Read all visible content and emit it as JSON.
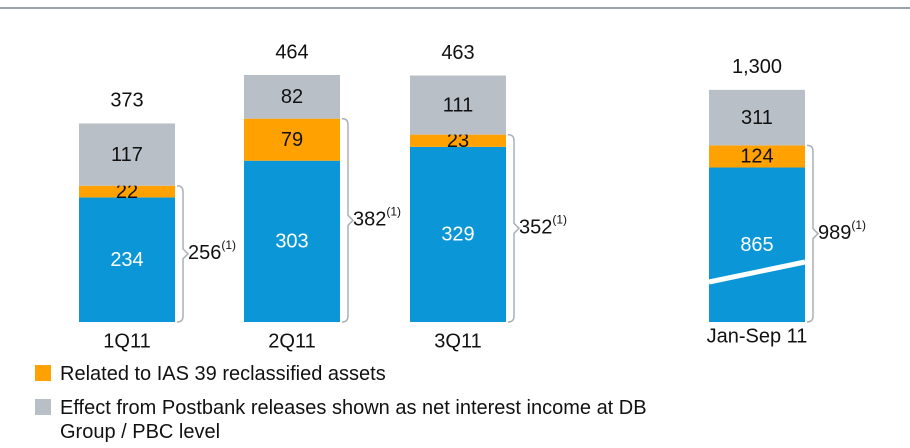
{
  "chart_data": {
    "type": "stacked-bar",
    "categories": [
      "1Q11",
      "2Q11",
      "3Q11",
      "Jan-Sep 11"
    ],
    "series": [
      {
        "color": "#0b97d7",
        "values": [
          234,
          303,
          329,
          865
        ]
      },
      {
        "name": "Related to IAS 39 reclassified assets",
        "color": "#ffa100",
        "values": [
          22,
          79,
          23,
          124
        ]
      },
      {
        "name": "Effect from Postbank releases shown as net interest income at DB Group / PBC level",
        "color": "#b8bfc7",
        "values": [
          117,
          82,
          111,
          311
        ]
      }
    ],
    "totals": [
      373,
      464,
      463,
      1300
    ],
    "total_labels": [
      "373",
      "464",
      "463",
      "1,300"
    ],
    "brackets": [
      256,
      382,
      352,
      989
    ],
    "bracket_note": "(1)",
    "broken": [
      false,
      false,
      false,
      true
    ]
  }
}
